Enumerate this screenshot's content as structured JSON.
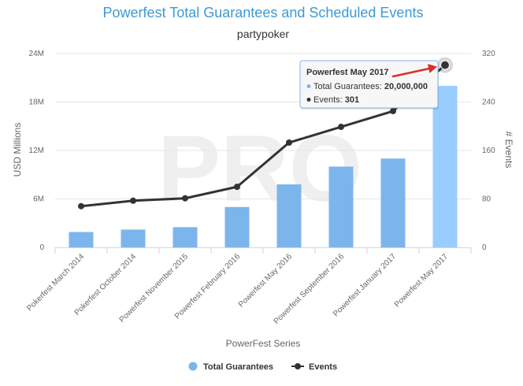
{
  "chart_data": {
    "type": "bar+line",
    "title": "Powerfest Total Guarantees and Scheduled Events",
    "subtitle": "partypoker",
    "xlabel": "PowerFest Series",
    "ylabel_left": "USD Millions",
    "ylabel_right": "# Events",
    "categories": [
      "Pokerfest March 2014",
      "Pokerfest October 2014",
      "Powerfest November 2015",
      "Powerfest February 2016",
      "Powerfest May 2016",
      "Powerfest September 2016",
      "Powerfest January 2017",
      "Powerfest May 2017"
    ],
    "left_axis": {
      "ylim": [
        0,
        24
      ],
      "ticks": [
        0,
        6,
        12,
        18,
        24
      ],
      "tick_labels": [
        "0",
        "6M",
        "12M",
        "18M",
        "24M"
      ]
    },
    "right_axis": {
      "ylim": [
        0,
        320
      ],
      "ticks": [
        0,
        80,
        160,
        240,
        320
      ],
      "tick_labels": [
        "0",
        "80",
        "160",
        "240",
        "320"
      ]
    },
    "series": [
      {
        "name": "Total Guarantees",
        "type": "bar",
        "axis": "left",
        "color": "#7cb5ec",
        "highlight_color": "#99ccff",
        "values": [
          1.9,
          2.2,
          2.5,
          5.0,
          7.8,
          10.0,
          11.0,
          20.0
        ]
      },
      {
        "name": "Events",
        "type": "line",
        "axis": "right",
        "color": "#333333",
        "values": [
          68,
          77,
          81,
          100,
          173,
          199,
          225,
          301
        ]
      }
    ],
    "legend": {
      "position": "bottom-center"
    },
    "grid": true,
    "tooltip": {
      "category_index": 7,
      "title": "Powerfest May 2017",
      "rows": [
        {
          "label": "Total Guarantees:",
          "value": "20,000,000",
          "color": "#7cb5ec"
        },
        {
          "label": "Events:",
          "value": "301",
          "color": "#333333"
        }
      ]
    },
    "watermark": "PRO"
  }
}
